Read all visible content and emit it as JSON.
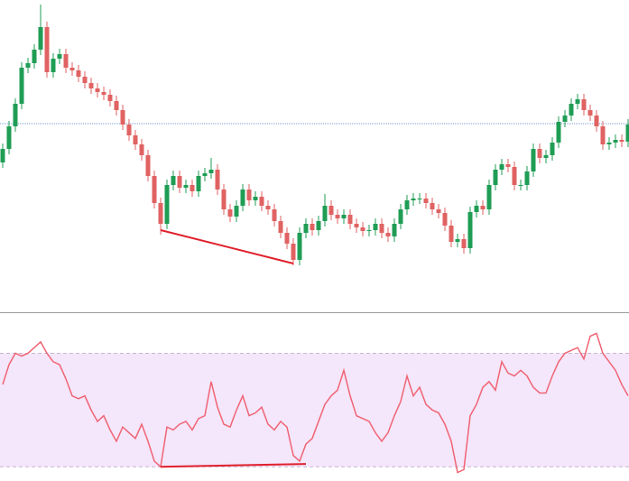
{
  "chart_data": [
    {
      "type": "candlestick",
      "categories": [
        null,
        null,
        null,
        null,
        null,
        null,
        null,
        null,
        null,
        null,
        null,
        null,
        null,
        null,
        null,
        null,
        null,
        null,
        null,
        null,
        null,
        null,
        null,
        null,
        null,
        null,
        null,
        null,
        null,
        null,
        null,
        null,
        null,
        null,
        null,
        null,
        null,
        null,
        null,
        null,
        null,
        null,
        null,
        null,
        null,
        null,
        null,
        null,
        null,
        null,
        null,
        null,
        null,
        null,
        null,
        null,
        null,
        null,
        null,
        null,
        null,
        null,
        null,
        null,
        null,
        null,
        null,
        null,
        null,
        null,
        null,
        null,
        null,
        null,
        null,
        null,
        null,
        null,
        null,
        null,
        null,
        null,
        null,
        null,
        null,
        null,
        null,
        null,
        null,
        null,
        null,
        null,
        null,
        null,
        null,
        null,
        null,
        null,
        null,
        null
      ],
      "open": [
        160,
        175,
        200,
        225,
        265,
        270,
        285,
        310,
        260,
        275,
        280,
        265,
        262,
        255,
        248,
        242,
        238,
        235,
        228,
        218,
        202,
        190,
        180,
        168,
        145,
        115,
        92,
        135,
        145,
        132,
        135,
        128,
        145,
        148,
        152,
        130,
        108,
        100,
        112,
        130,
        118,
        122,
        112,
        108,
        95,
        82,
        70,
        52,
        82,
        92,
        85,
        95,
        112,
        102,
        98,
        102,
        92,
        88,
        84,
        85,
        92,
        82,
        78,
        92,
        108,
        118,
        120,
        120,
        115,
        108,
        104,
        90,
        72,
        75,
        65,
        105,
        112,
        108,
        135,
        152,
        158,
        155,
        135,
        135,
        150,
        175,
        165,
        168,
        182,
        205,
        212,
        225,
        230,
        218,
        212,
        200,
        180,
        182,
        185,
        183
      ],
      "high": [
        181,
        206,
        231,
        271,
        276,
        291,
        335,
        316,
        281,
        286,
        286,
        271,
        268,
        261,
        254,
        248,
        244,
        241,
        234,
        224,
        208,
        196,
        186,
        174,
        151,
        121,
        141,
        151,
        151,
        141,
        141,
        151,
        154,
        165,
        158,
        136,
        114,
        118,
        136,
        136,
        128,
        128,
        118,
        114,
        101,
        88,
        76,
        88,
        98,
        98,
        101,
        125,
        118,
        108,
        108,
        108,
        98,
        94,
        91,
        98,
        98,
        88,
        98,
        114,
        124,
        126,
        126,
        126,
        121,
        114,
        110,
        96,
        81,
        81,
        111,
        118,
        118,
        141,
        158,
        164,
        164,
        161,
        141,
        156,
        181,
        181,
        174,
        188,
        211,
        218,
        231,
        236,
        236,
        224,
        218,
        206,
        188,
        191,
        191,
        208
      ],
      "low": [
        154,
        169,
        194,
        219,
        259,
        264,
        279,
        254,
        254,
        269,
        259,
        256,
        249,
        242,
        236,
        232,
        229,
        222,
        212,
        196,
        184,
        174,
        162,
        139,
        109,
        80,
        86,
        129,
        126,
        126,
        122,
        122,
        139,
        142,
        124,
        102,
        94,
        94,
        106,
        112,
        112,
        106,
        102,
        89,
        76,
        64,
        46,
        46,
        76,
        79,
        79,
        89,
        96,
        92,
        92,
        86,
        82,
        78,
        78,
        79,
        76,
        72,
        72,
        86,
        102,
        112,
        114,
        109,
        102,
        98,
        84,
        66,
        66,
        59,
        59,
        99,
        102,
        102,
        129,
        146,
        149,
        129,
        129,
        129,
        144,
        159,
        159,
        162,
        176,
        199,
        206,
        219,
        212,
        206,
        194,
        174,
        174,
        176,
        177,
        177
      ],
      "close": [
        175,
        200,
        225,
        265,
        270,
        285,
        310,
        260,
        275,
        280,
        265,
        262,
        255,
        248,
        242,
        238,
        235,
        228,
        218,
        202,
        190,
        180,
        168,
        145,
        115,
        92,
        135,
        145,
        132,
        135,
        128,
        145,
        148,
        152,
        130,
        108,
        100,
        112,
        130,
        118,
        122,
        112,
        108,
        95,
        82,
        70,
        52,
        82,
        92,
        85,
        95,
        112,
        102,
        98,
        102,
        92,
        88,
        84,
        85,
        92,
        82,
        78,
        92,
        108,
        118,
        120,
        120,
        115,
        108,
        104,
        90,
        72,
        75,
        65,
        105,
        112,
        108,
        135,
        152,
        158,
        155,
        135,
        135,
        150,
        175,
        165,
        168,
        182,
        205,
        212,
        225,
        230,
        218,
        212,
        200,
        180,
        182,
        185,
        183,
        202
      ],
      "up_color": "#1f9d55",
      "down_color": "#e06262",
      "ylim": [
        0,
        340
      ],
      "price_line": 203,
      "price_line_color": "#4a78c8",
      "divergence": {
        "x": [
          25,
          46
        ],
        "values": [
          85,
          48
        ],
        "color": "#e0202c"
      }
    },
    {
      "type": "line",
      "values": [
        59,
        66,
        70,
        69,
        70,
        72,
        74,
        70,
        67,
        66,
        61,
        55,
        54,
        55,
        50,
        46,
        48,
        43,
        39,
        44,
        42,
        40,
        45,
        39,
        32,
        30,
        44,
        43,
        45,
        46,
        43,
        47,
        48,
        60,
        51,
        45,
        44,
        50,
        55,
        48,
        49,
        51,
        45,
        43,
        46,
        44,
        34,
        32,
        38,
        40,
        46,
        52,
        55,
        57,
        64,
        55,
        48,
        47,
        46,
        42,
        39,
        42,
        48,
        53,
        62,
        55,
        58,
        52,
        50,
        49,
        45,
        39,
        28,
        29,
        48,
        52,
        58,
        60,
        57,
        67,
        63,
        62,
        64,
        62,
        58,
        56,
        56,
        62,
        67,
        70,
        71,
        72,
        68,
        76,
        77,
        70,
        67,
        64,
        59,
        55
      ],
      "color": "#f06474",
      "ylim": [
        25,
        80
      ],
      "levels": [
        30,
        70
      ],
      "band_color": "#f4e6fb",
      "divergence": {
        "x": [
          25,
          48
        ],
        "values": [
          30,
          31
        ],
        "color": "#e0202c"
      }
    }
  ]
}
